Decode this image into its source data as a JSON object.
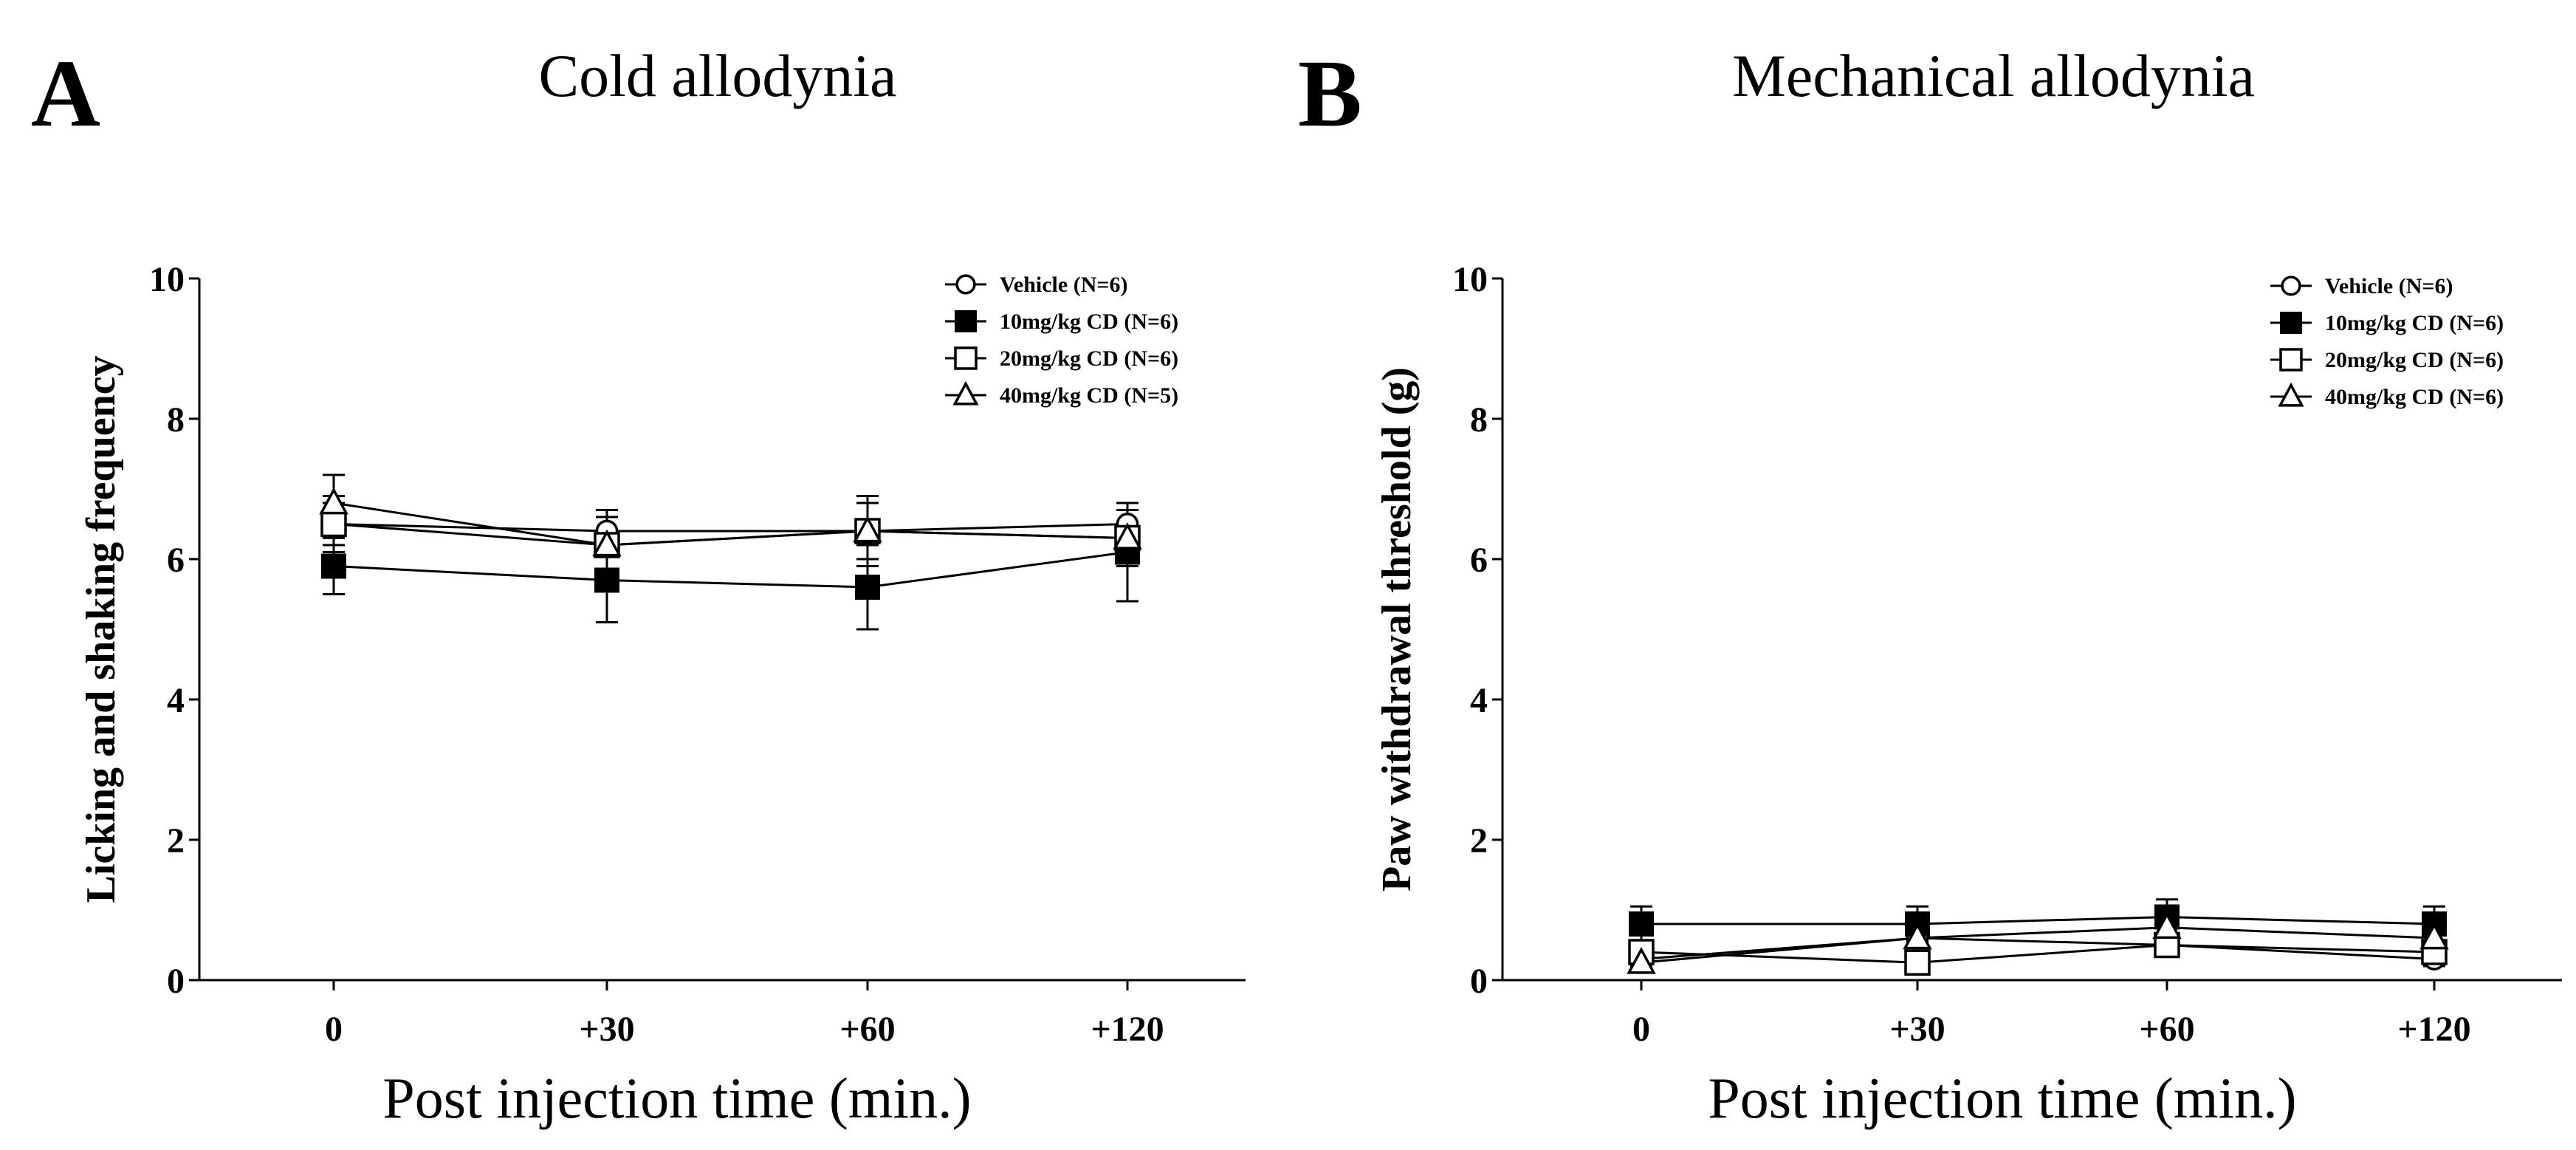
{
  "panels": [
    {
      "letter": "A",
      "title": "Cold allodynia"
    },
    {
      "letter": "B",
      "title": "Mechanical allodynia"
    }
  ],
  "chart_data": [
    {
      "type": "line",
      "title": "Cold allodynia",
      "xlabel": "Post injection time (min.)",
      "ylabel": "Licking and shaking frequency",
      "categories": [
        "0",
        "+30",
        "+60",
        "+120"
      ],
      "ylim": [
        0,
        10
      ],
      "yticks": [
        0,
        2,
        4,
        6,
        8,
        10
      ],
      "legend_position": "top-right",
      "series": [
        {
          "name": "Vehicle (N=6)",
          "marker": "open-circle",
          "values": [
            6.5,
            6.4,
            6.4,
            6.5
          ],
          "errors": [
            0.3,
            0.3,
            0.4,
            0.3
          ]
        },
        {
          "name": "10mg/kg CD (N=6)",
          "marker": "filled-square",
          "values": [
            5.9,
            5.7,
            5.6,
            6.1
          ],
          "errors": [
            0.4,
            0.6,
            0.6,
            0.7
          ]
        },
        {
          "name": "20mg/kg CD (N=6)",
          "marker": "open-square",
          "values": [
            6.5,
            6.2,
            6.4,
            6.3
          ],
          "errors": [
            0.4,
            0.4,
            0.5,
            0.4
          ]
        },
        {
          "name": "40mg/kg CD (N=5)",
          "marker": "open-triangle",
          "values": [
            6.8,
            6.2,
            6.4,
            6.3
          ],
          "errors": [
            0.4,
            0.4,
            0.5,
            0.4
          ]
        }
      ]
    },
    {
      "type": "line",
      "title": "Mechanical allodynia",
      "xlabel": "Post injection time (min.)",
      "ylabel": "Paw withdrawal threshold (g)",
      "categories": [
        "0",
        "+30",
        "+60",
        "+120"
      ],
      "ylim": [
        0,
        10
      ],
      "yticks": [
        0,
        2,
        4,
        6,
        8,
        10
      ],
      "legend_position": "top-right",
      "series": [
        {
          "name": "Vehicle (N=6)",
          "marker": "open-circle",
          "values": [
            0.3,
            0.6,
            0.5,
            0.3
          ],
          "errors": [
            0.1,
            0.1,
            0.1,
            0.1
          ]
        },
        {
          "name": "10mg/kg CD (N=6)",
          "marker": "filled-square",
          "values": [
            0.8,
            0.8,
            0.9,
            0.8
          ],
          "errors": [
            0.25,
            0.25,
            0.25,
            0.25
          ]
        },
        {
          "name": "20mg/kg CD (N=6)",
          "marker": "open-square",
          "values": [
            0.4,
            0.25,
            0.5,
            0.4
          ],
          "errors": [
            0.1,
            0.1,
            0.1,
            0.1
          ]
        },
        {
          "name": "40mg/kg CD (N=6)",
          "marker": "open-triangle",
          "values": [
            0.25,
            0.6,
            0.75,
            0.6
          ],
          "errors": [
            0.1,
            0.1,
            0.15,
            0.1
          ]
        }
      ]
    }
  ]
}
